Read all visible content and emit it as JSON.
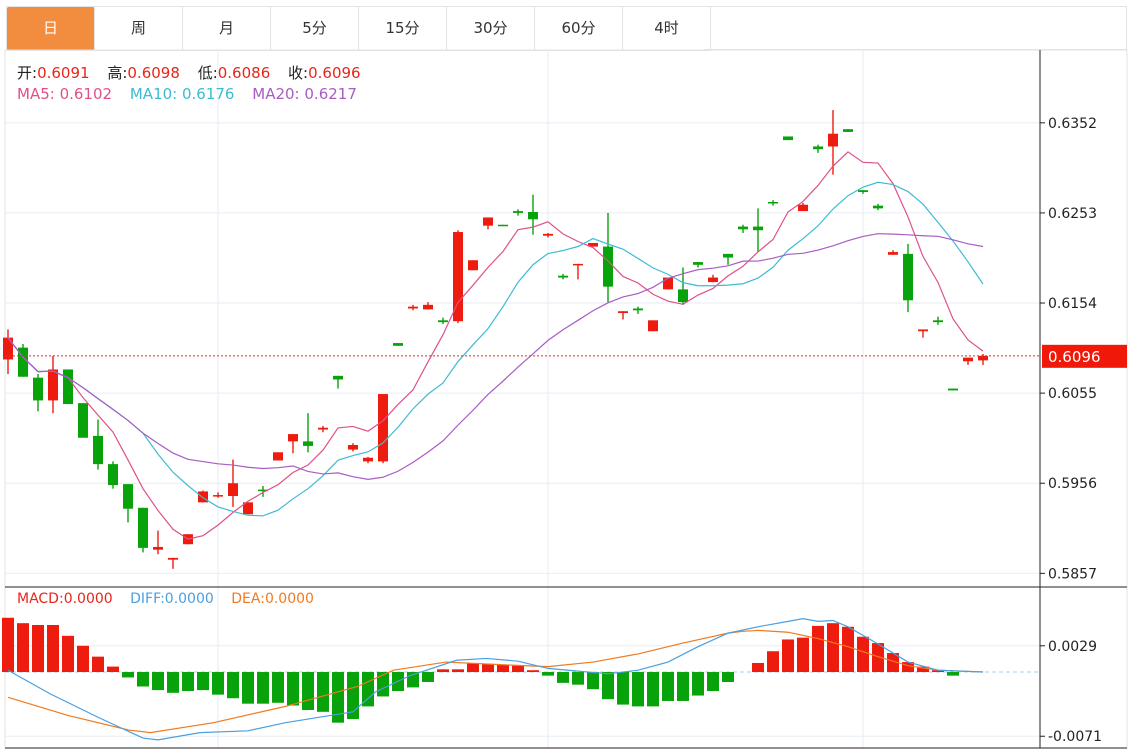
{
  "tabs": [
    {
      "label": "日",
      "active": true
    },
    {
      "label": "周",
      "active": false
    },
    {
      "label": "月",
      "active": false
    },
    {
      "label": "5分",
      "active": false
    },
    {
      "label": "15分",
      "active": false
    },
    {
      "label": "30分",
      "active": false
    },
    {
      "label": "60分",
      "active": false
    },
    {
      "label": "4时",
      "active": false
    }
  ],
  "legend": {
    "open_label": "开:",
    "open": "0.6091",
    "high_label": "高:",
    "high": "0.6098",
    "low_label": "低:",
    "low": "0.6086",
    "close_label": "收:",
    "close": "0.6096",
    "ma5_label": "MA5: ",
    "ma5": "0.6102",
    "ma10_label": "MA10: ",
    "ma10": "0.6176",
    "ma20_label": "MA20: ",
    "ma20": "0.6217"
  },
  "macd_legend": {
    "macd_label": "MACD:",
    "macd": "0.0000",
    "diff_label": "DIFF:",
    "diff": "0.0000",
    "dea_label": "DEA:",
    "dea": "0.0000"
  },
  "colors": {
    "up": "#ee1c0e",
    "down": "#08a20a",
    "accent": "#f28c3e",
    "ma5": "#e0508a",
    "ma10": "#3cbcd3",
    "ma20": "#a95cc3",
    "diff": "#4a9fe0",
    "dea": "#f07a20"
  },
  "chart_data": {
    "type": "candlestick",
    "title": "",
    "ohlc_fields": [
      "open",
      "high",
      "low",
      "close"
    ],
    "ohlc": [
      [
        0.6092,
        0.6125,
        0.6076,
        0.6116
      ],
      [
        0.6105,
        0.6109,
        0.6073,
        0.6073
      ],
      [
        0.6072,
        0.6076,
        0.6035,
        0.6047
      ],
      [
        0.6047,
        0.6096,
        0.6033,
        0.6081
      ],
      [
        0.6081,
        0.6081,
        0.6043,
        0.6043
      ],
      [
        0.6044,
        0.6044,
        0.6006,
        0.6006
      ],
      [
        0.6008,
        0.6026,
        0.5971,
        0.5977
      ],
      [
        0.5977,
        0.598,
        0.595,
        0.5954
      ],
      [
        0.5955,
        0.5955,
        0.5913,
        0.5928
      ],
      [
        0.5929,
        0.5929,
        0.588,
        0.5885
      ],
      [
        0.5883,
        0.5904,
        0.5878,
        0.5886
      ],
      [
        0.5872,
        0.5874,
        0.5862,
        0.5874
      ],
      [
        0.5889,
        0.59,
        0.5889,
        0.59
      ],
      [
        0.5935,
        0.5948,
        0.5935,
        0.5947
      ],
      [
        0.5942,
        0.5946,
        0.594,
        0.5943
      ],
      [
        0.5942,
        0.5982,
        0.593,
        0.5956
      ],
      [
        0.5922,
        0.5935,
        0.5922,
        0.5935
      ],
      [
        0.5949,
        0.5953,
        0.5941,
        0.5948
      ],
      [
        0.5981,
        0.599,
        0.5981,
        0.599
      ],
      [
        0.6002,
        0.601,
        0.5989,
        0.601
      ],
      [
        0.6002,
        0.6033,
        0.599,
        0.5997
      ],
      [
        0.6015,
        0.6019,
        0.6012,
        0.6017
      ],
      [
        0.6074,
        0.6074,
        0.606,
        0.607
      ],
      [
        0.5993,
        0.6,
        0.5991,
        0.5998
      ],
      [
        0.598,
        0.5985,
        0.5978,
        0.5984
      ],
      [
        0.598,
        0.6054,
        0.5978,
        0.6054
      ],
      [
        0.611,
        0.611,
        0.6107,
        0.6107
      ],
      [
        0.6148,
        0.6152,
        0.6146,
        0.615
      ],
      [
        0.6147,
        0.6155,
        0.6147,
        0.6152
      ],
      [
        0.6135,
        0.6138,
        0.6131,
        0.6133
      ],
      [
        0.6134,
        0.6234,
        0.6132,
        0.6232
      ],
      [
        0.619,
        0.6201,
        0.619,
        0.6201
      ],
      [
        0.6239,
        0.6248,
        0.6235,
        0.6248
      ],
      [
        0.624,
        0.624,
        0.6239,
        0.6239
      ],
      [
        0.6255,
        0.6257,
        0.625,
        0.6253
      ],
      [
        0.6254,
        0.6273,
        0.6229,
        0.6246
      ],
      [
        0.6228,
        0.6231,
        0.6226,
        0.623
      ],
      [
        0.6184,
        0.6186,
        0.618,
        0.6182
      ],
      [
        0.6196,
        0.6197,
        0.618,
        0.6197
      ],
      [
        0.6216,
        0.622,
        0.6216,
        0.622
      ],
      [
        0.6216,
        0.6253,
        0.6155,
        0.6172
      ],
      [
        0.6143,
        0.6145,
        0.6136,
        0.6145
      ],
      [
        0.6148,
        0.615,
        0.6142,
        0.6146
      ],
      [
        0.6123,
        0.6135,
        0.6123,
        0.6135
      ],
      [
        0.6169,
        0.6182,
        0.6169,
        0.6182
      ],
      [
        0.6169,
        0.6193,
        0.6152,
        0.6155
      ],
      [
        0.6199,
        0.6199,
        0.6193,
        0.6196
      ],
      [
        0.6177,
        0.6185,
        0.6177,
        0.6182
      ],
      [
        0.6208,
        0.6208,
        0.6196,
        0.6204
      ],
      [
        0.6238,
        0.624,
        0.6231,
        0.6235
      ],
      [
        0.6238,
        0.6258,
        0.621,
        0.6234
      ],
      [
        0.6265,
        0.6267,
        0.6261,
        0.6264
      ],
      [
        0.6337,
        0.6337,
        0.6333,
        0.6333
      ],
      [
        0.6255,
        0.6264,
        0.6255,
        0.6262
      ],
      [
        0.6326,
        0.6328,
        0.6319,
        0.6323
      ],
      [
        0.6326,
        0.6366,
        0.6295,
        0.634
      ],
      [
        0.6345,
        0.6345,
        0.6342,
        0.6342
      ],
      [
        0.6278,
        0.6278,
        0.6274,
        0.6276
      ],
      [
        0.6261,
        0.6263,
        0.6256,
        0.6258
      ],
      [
        0.6207,
        0.6212,
        0.6207,
        0.621
      ],
      [
        0.6208,
        0.6219,
        0.6144,
        0.6157
      ],
      [
        0.6123,
        0.6125,
        0.6116,
        0.6125
      ],
      [
        0.6135,
        0.6139,
        0.613,
        0.6133
      ],
      [
        0.606,
        0.606,
        0.6058,
        0.6058
      ],
      [
        0.609,
        0.6094,
        0.6086,
        0.6094
      ],
      [
        0.6091,
        0.6098,
        0.6086,
        0.6096
      ]
    ],
    "ma_periods": [
      5,
      10,
      20
    ],
    "price_axis": {
      "ticks": [
        "0.6352",
        "0.6253",
        "0.6154",
        "0.6055",
        "0.5956",
        "0.5857"
      ],
      "ylim": [
        0.5842,
        0.6432
      ]
    },
    "current_price": "0.6096",
    "macd": {
      "ticks": [
        "0.0029",
        "-0.0071"
      ],
      "ylim": [
        -0.0084,
        0.0094
      ],
      "hist": [
        0.006,
        0.0054,
        0.0052,
        0.0052,
        0.004,
        0.0029,
        0.0017,
        0.0006,
        -0.0006,
        -0.0016,
        -0.002,
        -0.0023,
        -0.0021,
        -0.002,
        -0.0025,
        -0.0029,
        -0.0035,
        -0.0035,
        -0.0034,
        -0.0037,
        -0.0042,
        -0.0044,
        -0.0056,
        -0.0052,
        -0.0038,
        -0.0027,
        -0.0021,
        -0.0017,
        -0.0011,
        0.0003,
        0.0003,
        0.001,
        0.0009,
        0.0008,
        0.0007,
        0.0002,
        -0.0004,
        -0.0012,
        -0.0014,
        -0.0019,
        -0.003,
        -0.0036,
        -0.0038,
        -0.0038,
        -0.0032,
        -0.0032,
        -0.0026,
        -0.0021,
        -0.0011,
        0,
        0.001,
        0.0023,
        0.0036,
        0.0038,
        0.0051,
        0.0054,
        0.005,
        0.0039,
        0.0032,
        0.0021,
        0.0011,
        0.0006,
        0.0002,
        -0.0004,
        0,
        0
      ],
      "diff": [
        [
          0,
          0.0002
        ],
        [
          2.8,
          -0.0024
        ],
        [
          6,
          -0.005
        ],
        [
          9,
          -0.0073
        ],
        [
          10,
          -0.0075
        ],
        [
          12.8,
          -0.0067
        ],
        [
          16,
          -0.0065
        ],
        [
          18.5,
          -0.0056
        ],
        [
          20,
          -0.0052
        ],
        [
          23,
          -0.0044
        ],
        [
          24.5,
          -0.0022
        ],
        [
          26.8,
          -0.0004
        ],
        [
          29.9,
          0.0013
        ],
        [
          31.9,
          0.0015
        ],
        [
          34,
          0.0012
        ],
        [
          36,
          0.0004
        ],
        [
          38,
          0.0001
        ],
        [
          40,
          -0.0002
        ],
        [
          42,
          0.0002
        ],
        [
          44,
          0.0011
        ],
        [
          46,
          0.0028
        ],
        [
          48,
          0.0043
        ],
        [
          50,
          0.005
        ],
        [
          52,
          0.0056
        ],
        [
          53,
          0.0059
        ],
        [
          54,
          0.0056
        ],
        [
          55,
          0.0057
        ],
        [
          56,
          0.005
        ],
        [
          58,
          0.0031
        ],
        [
          60,
          0.0011
        ],
        [
          62,
          0.0002
        ],
        [
          65,
          0
        ]
      ],
      "dea": [
        [
          0,
          -0.0028
        ],
        [
          4,
          -0.0048
        ],
        [
          8,
          -0.0064
        ],
        [
          9.5,
          -0.0067
        ],
        [
          13.7,
          -0.0056
        ],
        [
          18.5,
          -0.0038
        ],
        [
          23.3,
          -0.0016
        ],
        [
          25.7,
          0.0002
        ],
        [
          29.2,
          0.0011
        ],
        [
          33,
          0.0008
        ],
        [
          36,
          0.0006
        ],
        [
          39,
          0.0011
        ],
        [
          42,
          0.002
        ],
        [
          45,
          0.0032
        ],
        [
          48,
          0.0043
        ],
        [
          49,
          0.0045
        ],
        [
          50,
          0.0046
        ],
        [
          52,
          0.0044
        ],
        [
          54,
          0.0037
        ],
        [
          56,
          0.0028
        ],
        [
          58,
          0.0017
        ],
        [
          60,
          0.0007
        ],
        [
          62,
          0.0002
        ],
        [
          65,
          0
        ]
      ]
    }
  }
}
